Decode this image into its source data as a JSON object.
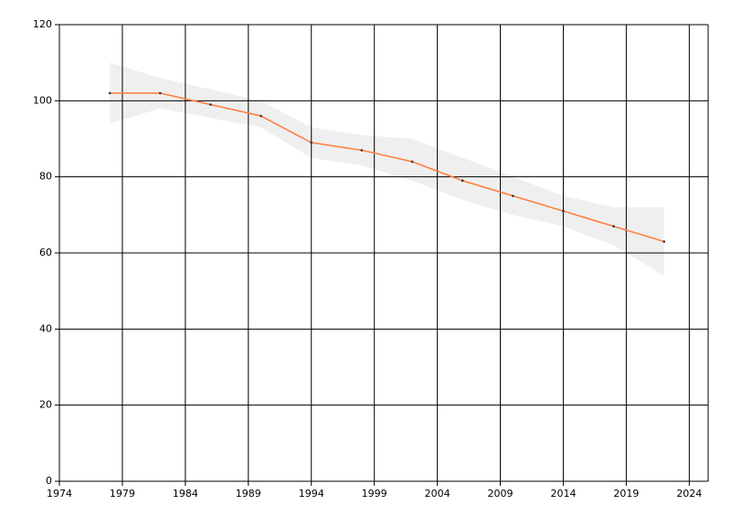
{
  "chart_data": {
    "type": "line",
    "x": [
      1978,
      1982,
      1986,
      1990,
      1994,
      1998,
      2002,
      2006,
      2010,
      2014,
      2018,
      2022
    ],
    "series": [
      {
        "color": "#ff7f3f",
        "values": [
          102,
          102,
          99,
          96,
          89,
          87,
          84,
          79,
          75,
          71,
          67,
          63
        ],
        "upper": [
          110,
          106,
          103,
          100,
          93,
          91,
          90,
          85,
          80,
          75,
          72,
          72
        ],
        "lower": [
          94,
          98,
          95.5,
          93,
          85,
          83,
          79,
          74,
          70,
          67,
          62,
          54
        ],
        "band_color": "#efefef"
      }
    ],
    "xlim": [
      1974,
      2025.5
    ],
    "xticks": [
      1974,
      1979,
      1984,
      1989,
      1994,
      1999,
      2004,
      2009,
      2014,
      2019,
      2024
    ],
    "ylim": [
      0,
      120
    ],
    "yticks": [
      0,
      20,
      40,
      60,
      80,
      100,
      120
    ],
    "grid": true
  }
}
